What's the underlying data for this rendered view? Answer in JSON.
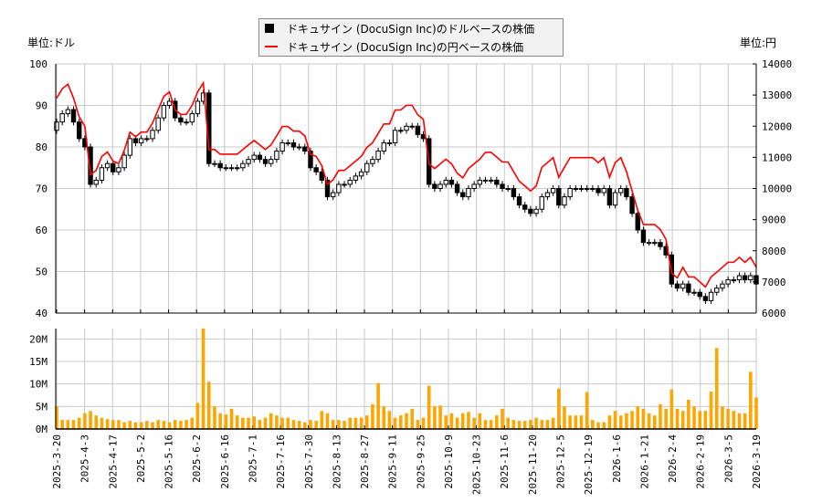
{
  "legend": {
    "usd": "ドキュサイン (DocuSign Inc)のドルベースの株価",
    "jpy": "ドキュサイン (DocuSign Inc)の円ベースの株価"
  },
  "units": {
    "left": "単位:ドル",
    "right": "単位:円"
  },
  "colors": {
    "jpy_line": "#ff0000",
    "volume": "#ffa500",
    "candle": "#000000",
    "grid": "#c8c8c8"
  },
  "chart_data": {
    "type": "candlestick+line+bar",
    "x_ticks": [
      "2025-3-20",
      "2025-4-3",
      "2025-4-17",
      "2025-5-2",
      "2025-5-16",
      "2025-6-2",
      "2025-6-16",
      "2025-7-1",
      "2025-7-16",
      "2025-7-30",
      "2025-8-13",
      "2025-8-27",
      "2025-9-11",
      "2025-9-25",
      "2025-10-9",
      "2025-10-23",
      "2025-11-6",
      "2025-11-20",
      "2025-12-5",
      "2025-12-19",
      "2026-1-6",
      "2026-1-21",
      "2026-2-4",
      "2026-2-19",
      "2026-3-5",
      "2026-3-19"
    ],
    "usd_axis": {
      "range": [
        40,
        100
      ],
      "ticks": [
        "100",
        "90",
        "80",
        "70",
        "60",
        "50",
        "40"
      ]
    },
    "jpy_axis": {
      "range": [
        6000,
        14000
      ],
      "ticks": [
        "14000",
        "13000",
        "12000",
        "11000",
        "10000",
        "9000",
        "8000",
        "7000",
        "6000"
      ]
    },
    "volume_axis": {
      "range": [
        0,
        22.3
      ],
      "unit": "M",
      "ticks": [
        "20M",
        "15M",
        "10M",
        "5M",
        "0M"
      ]
    },
    "grid": true,
    "usd_close": [
      86,
      88,
      89,
      86,
      82,
      80,
      71,
      72,
      75,
      76,
      74,
      75,
      78,
      82,
      81,
      82,
      82,
      84,
      87,
      90,
      91,
      87,
      86,
      86,
      88,
      91,
      93,
      76,
      76,
      75,
      75,
      75,
      75,
      76,
      77,
      78,
      77,
      76,
      77,
      79,
      81,
      81,
      80,
      80,
      79,
      75,
      74,
      72,
      68,
      69,
      71,
      71,
      72,
      73,
      74,
      76,
      77,
      79,
      81,
      81,
      84,
      84,
      85,
      85,
      83,
      82,
      71,
      70,
      71,
      72,
      71,
      69,
      68,
      70,
      71,
      72,
      72,
      72,
      71,
      70,
      70,
      68,
      66,
      65,
      64,
      65,
      68,
      69,
      70,
      66,
      68,
      70,
      70,
      70,
      70,
      70,
      69,
      70,
      66,
      69,
      70,
      68,
      64,
      60,
      57,
      57,
      57,
      56,
      54,
      47,
      46,
      47,
      45,
      45,
      44,
      43,
      45,
      46,
      47,
      48,
      48,
      49,
      48,
      49,
      47
    ],
    "jpy_close": [
      12900,
      13200,
      13350,
      12900,
      12300,
      12000,
      10440,
      10580,
      11030,
      11170,
      10880,
      10800,
      11230,
      11810,
      11660,
      11810,
      11810,
      12100,
      12530,
      12960,
      13100,
      12530,
      12380,
      12380,
      12670,
      13100,
      13390,
      11250,
      11250,
      11100,
      11100,
      11100,
      11100,
      11250,
      11400,
      11540,
      11400,
      11250,
      11400,
      11690,
      11990,
      11990,
      11840,
      11840,
      11690,
      11100,
      11030,
      10730,
      10130,
      10280,
      10580,
      10580,
      10730,
      10880,
      11030,
      11320,
      11470,
      11770,
      12070,
      12070,
      12520,
      12520,
      12670,
      12670,
      12370,
      12220,
      10790,
      10640,
      10790,
      10940,
      10790,
      10490,
      10340,
      10640,
      10790,
      10940,
      11160,
      11160,
      11010,
      10850,
      10850,
      10540,
      10230,
      10080,
      9920,
      10080,
      10680,
      10830,
      10990,
      10360,
      10680,
      10990,
      10990,
      10990,
      10990,
      10990,
      10830,
      10990,
      10360,
      10830,
      10990,
      10540,
      9920,
      9300,
      8840,
      8840,
      8840,
      8680,
      8370,
      7290,
      7130,
      7470,
      7160,
      7160,
      7000,
      6840,
      7160,
      7310,
      7470,
      7630,
      7630,
      7790,
      7630,
      7790,
      7470
    ],
    "volume_m": [
      5,
      2,
      2,
      2,
      2.5,
      3.5,
      4,
      3,
      2.5,
      2.2,
      2,
      2,
      1.5,
      1.8,
      1.5,
      1.5,
      1.8,
      1.5,
      2,
      1.8,
      1.5,
      2,
      1.8,
      2,
      2.5,
      5.8,
      22.3,
      10.5,
      5,
      3.5,
      3.2,
      4.5,
      3,
      2.5,
      2.5,
      2.8,
      2,
      2.5,
      3.5,
      3,
      2.5,
      2.5,
      2,
      1.8,
      1.5,
      2,
      1.8,
      4,
      3.5,
      2,
      2,
      1.8,
      2.5,
      2.5,
      2.5,
      3,
      5.5,
      10.2,
      5,
      4,
      2.5,
      3,
      3.5,
      4.5,
      2,
      2.5,
      9.6,
      5,
      5.2,
      3,
      3.5,
      2.5,
      3.5,
      3.8,
      2.5,
      3.5,
      2,
      2,
      3,
      4.5,
      2.5,
      2,
      1.8,
      1.8,
      2,
      2.5,
      2,
      2,
      2.5,
      9,
      5,
      3,
      3,
      3,
      8.2,
      2,
      1.5,
      1.5,
      3,
      4,
      3,
      3.5,
      4,
      5,
      4.5,
      3.5,
      3,
      5.5,
      4.5,
      8.8,
      4.5,
      4,
      6.5,
      5,
      4,
      4,
      8.3,
      18,
      5,
      4.5,
      4,
      3.5,
      3.5,
      12.7,
      7
    ]
  }
}
